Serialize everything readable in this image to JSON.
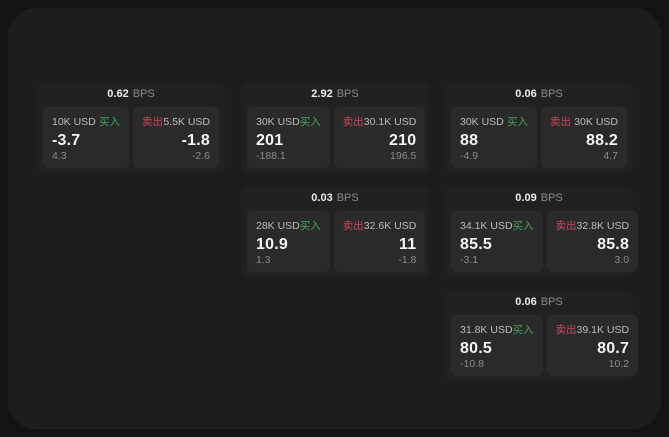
{
  "colors": {
    "outer_bg": "#131313",
    "window_bg": "#1d1d1e",
    "card_bg": "#212121",
    "panel_bg": "#2a2a2a",
    "buy_green": "#46a35a",
    "sell_red": "#c8465a"
  },
  "labels": {
    "bps": "BPS",
    "buy": "买入",
    "sell": "卖出"
  },
  "cards": [
    {
      "grid": {
        "row": 1,
        "col": 1
      },
      "bps": "0.62",
      "buy": {
        "size": "10K USD",
        "price": "-3.7",
        "delta": "4.3"
      },
      "sell": {
        "size": "5.5K USD",
        "price": "-1.8",
        "delta": "-2.6"
      }
    },
    {
      "grid": {
        "row": 1,
        "col": 2
      },
      "bps": "2.92",
      "buy": {
        "size": "30K USD",
        "price": "201",
        "delta": "-188.1"
      },
      "sell": {
        "size": "30.1K USD",
        "price": "210",
        "delta": "196.5"
      }
    },
    {
      "grid": {
        "row": 1,
        "col": 3
      },
      "bps": "0.06",
      "buy": {
        "size": "30K USD",
        "price": "88",
        "delta": "-4.9"
      },
      "sell": {
        "size": "30K USD",
        "price": "88.2",
        "delta": "4.7"
      }
    },
    {
      "grid": {
        "row": 2,
        "col": 2
      },
      "bps": "0.03",
      "buy": {
        "size": "28K USD",
        "price": "10.9",
        "delta": "1.3"
      },
      "sell": {
        "size": "32.6K USD",
        "price": "11",
        "delta": "-1.8"
      }
    },
    {
      "grid": {
        "row": 2,
        "col": 3
      },
      "bps": "0.09",
      "buy": {
        "size": "34.1K USD",
        "price": "85.5",
        "delta": "-3.1"
      },
      "sell": {
        "size": "32.8K USD",
        "price": "85.8",
        "delta": "3.0"
      }
    },
    {
      "grid": {
        "row": 3,
        "col": 3
      },
      "bps": "0.06",
      "buy": {
        "size": "31.8K USD",
        "price": "80.5",
        "delta": "-10.8"
      },
      "sell": {
        "size": "39.1K USD",
        "price": "80.7",
        "delta": "10.2"
      }
    }
  ]
}
